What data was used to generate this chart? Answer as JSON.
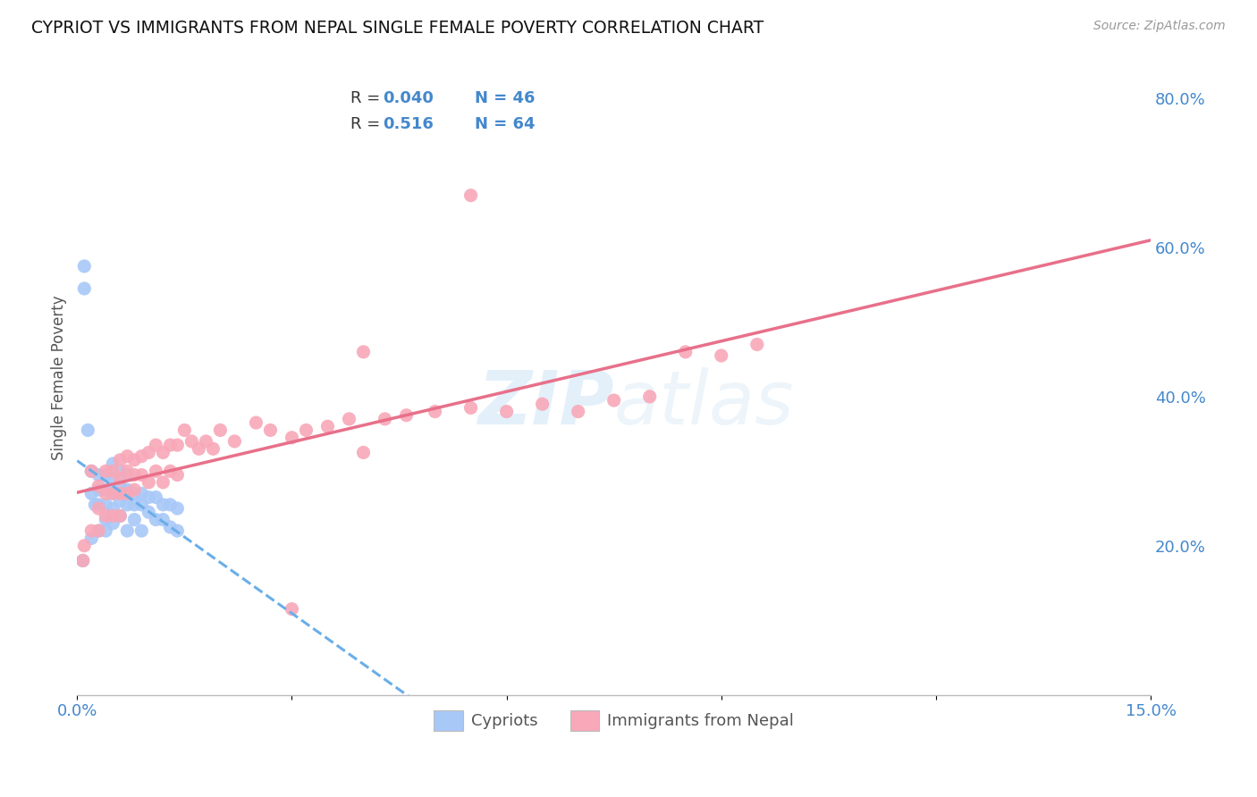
{
  "title": "CYPRIOT VS IMMIGRANTS FROM NEPAL SINGLE FEMALE POVERTY CORRELATION CHART",
  "source": "Source: ZipAtlas.com",
  "ylabel": "Single Female Poverty",
  "xlim": [
    0.0,
    0.15
  ],
  "ylim": [
    0.0,
    0.85
  ],
  "ytick_labels_right": [
    "20.0%",
    "40.0%",
    "60.0%",
    "80.0%"
  ],
  "yticks_right": [
    0.2,
    0.4,
    0.6,
    0.8
  ],
  "cypriot_color": "#a8c8f8",
  "nepal_color": "#f8a8b8",
  "trendline_cypriot_color": "#6aaee8",
  "trendline_nepal_color": "#e8708a",
  "watermark_color": "#cce4f7",
  "cypriot_x": [
    0.0008,
    0.001,
    0.001,
    0.0015,
    0.002,
    0.002,
    0.002,
    0.0025,
    0.003,
    0.003,
    0.003,
    0.003,
    0.004,
    0.004,
    0.004,
    0.004,
    0.004,
    0.005,
    0.005,
    0.005,
    0.005,
    0.005,
    0.006,
    0.006,
    0.006,
    0.006,
    0.007,
    0.007,
    0.007,
    0.007,
    0.008,
    0.008,
    0.008,
    0.009,
    0.009,
    0.009,
    0.01,
    0.01,
    0.011,
    0.011,
    0.012,
    0.012,
    0.013,
    0.013,
    0.014,
    0.014
  ],
  "cypriot_y": [
    0.18,
    0.575,
    0.545,
    0.355,
    0.3,
    0.27,
    0.21,
    0.255,
    0.295,
    0.275,
    0.255,
    0.22,
    0.295,
    0.275,
    0.255,
    0.235,
    0.22,
    0.31,
    0.29,
    0.27,
    0.25,
    0.23,
    0.3,
    0.28,
    0.26,
    0.24,
    0.295,
    0.275,
    0.255,
    0.22,
    0.27,
    0.255,
    0.235,
    0.27,
    0.255,
    0.22,
    0.265,
    0.245,
    0.265,
    0.235,
    0.255,
    0.235,
    0.255,
    0.225,
    0.25,
    0.22
  ],
  "nepal_x": [
    0.0008,
    0.001,
    0.002,
    0.002,
    0.003,
    0.003,
    0.003,
    0.004,
    0.004,
    0.004,
    0.005,
    0.005,
    0.005,
    0.006,
    0.006,
    0.006,
    0.006,
    0.007,
    0.007,
    0.007,
    0.008,
    0.008,
    0.008,
    0.009,
    0.009,
    0.01,
    0.01,
    0.011,
    0.011,
    0.012,
    0.012,
    0.013,
    0.013,
    0.014,
    0.014,
    0.015,
    0.016,
    0.017,
    0.018,
    0.019,
    0.02,
    0.022,
    0.025,
    0.027,
    0.03,
    0.032,
    0.035,
    0.038,
    0.04,
    0.043,
    0.046,
    0.05,
    0.055,
    0.06,
    0.065,
    0.07,
    0.075,
    0.08,
    0.085,
    0.09,
    0.095,
    0.055,
    0.04,
    0.03
  ],
  "nepal_y": [
    0.18,
    0.2,
    0.22,
    0.3,
    0.28,
    0.25,
    0.22,
    0.3,
    0.27,
    0.24,
    0.3,
    0.27,
    0.24,
    0.315,
    0.29,
    0.27,
    0.24,
    0.32,
    0.3,
    0.27,
    0.315,
    0.295,
    0.275,
    0.32,
    0.295,
    0.325,
    0.285,
    0.335,
    0.3,
    0.325,
    0.285,
    0.335,
    0.3,
    0.335,
    0.295,
    0.355,
    0.34,
    0.33,
    0.34,
    0.33,
    0.355,
    0.34,
    0.365,
    0.355,
    0.345,
    0.355,
    0.36,
    0.37,
    0.325,
    0.37,
    0.375,
    0.38,
    0.385,
    0.38,
    0.39,
    0.38,
    0.395,
    0.4,
    0.46,
    0.455,
    0.47,
    0.67,
    0.46,
    0.115
  ]
}
